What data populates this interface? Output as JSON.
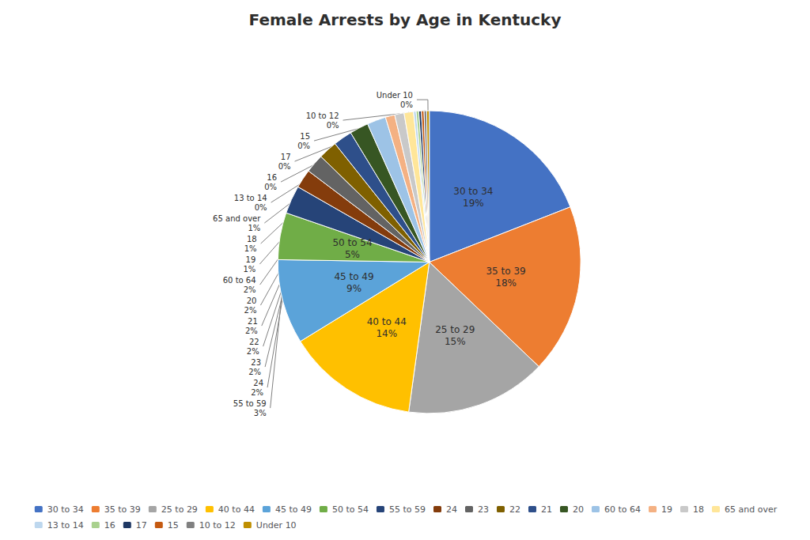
{
  "chart_data": {
    "type": "pie",
    "title": "Female Arrests by Age in Kentucky",
    "categories": [
      "30 to 34",
      "35 to 39",
      "25 to 29",
      "40 to 44",
      "45 to 49",
      "50 to 54",
      "55 to 59",
      "24",
      "23",
      "22",
      "21",
      "20",
      "60 to 64",
      "19",
      "18",
      "65 and over",
      "13 to 14",
      "16",
      "17",
      "15",
      "10 to 12",
      "Under 10"
    ],
    "values": [
      19,
      18,
      15,
      14,
      9,
      5,
      3,
      2,
      2,
      2,
      2,
      2,
      2,
      1,
      1,
      1,
      0,
      0,
      0,
      0,
      0,
      0
    ],
    "value_labels": [
      "19%",
      "18%",
      "15%",
      "14%",
      "9%",
      "5%",
      "3%",
      "2%",
      "2%",
      "2%",
      "2%",
      "2%",
      "2%",
      "1%",
      "1%",
      "1%",
      "0%",
      "0%",
      "0%",
      "0%",
      "0%",
      "0%"
    ],
    "colors": [
      "#4472C4",
      "#ED7D31",
      "#A5A5A5",
      "#FFC000",
      "#5BA3D9",
      "#70AD47",
      "#264478",
      "#843C0C",
      "#636363",
      "#7F6000",
      "#2E4F8A",
      "#375623",
      "#9DC3E6",
      "#F4B183",
      "#C9C9C9",
      "#FFE699",
      "#BDD7EE",
      "#A9D18E",
      "#1F3864",
      "#C55A11",
      "#808080",
      "#BF8F00"
    ],
    "data_labels": true,
    "legend": "bottom"
  }
}
